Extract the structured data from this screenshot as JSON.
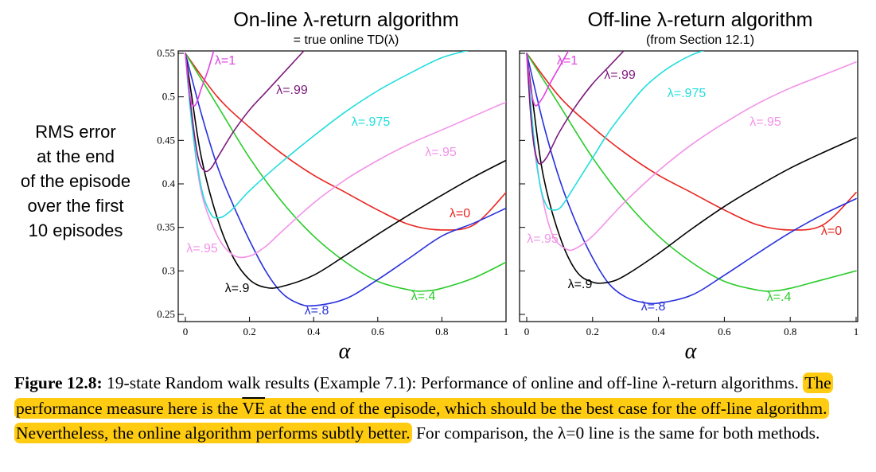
{
  "y_axis_label_lines": [
    "RMS error",
    "at the end",
    "of the episode",
    "over the first",
    "10 episodes"
  ],
  "caption": {
    "label": "Figure 12.8:",
    "text_before_highlight": " 19-state Random walk results (Example 7.1): Performance of online and off-line λ-return algorithms. ",
    "highlight_part1": "The performance measure here is the ",
    "highlight_ve": "VE",
    "highlight_part2": " at the end of the episode, which should be the best case for the off-line algorithm. Nevertheless, the online algorithm performs subtly better.",
    "text_after_highlight": " For comparison, the λ=0 line is the same for both methods.",
    "highlight_color": "#ffcc11"
  },
  "chart_data": [
    {
      "type": "line",
      "title": "On-line λ-return algorithm",
      "subtitle": "= true online TD(λ)",
      "xlabel": "α",
      "ylabel": "RMS error at the end of the episode over the first 10 episodes",
      "xlim": [
        0,
        1
      ],
      "ylim": [
        0.25,
        0.55
      ],
      "x_ticks": [
        "0",
        "0.2",
        "0.4",
        "0.6",
        "0.8",
        "1"
      ],
      "y_ticks": [
        "0.25",
        "0.3",
        "0.35",
        "0.4",
        "0.45",
        "0.5",
        "0.55"
      ],
      "grid": false,
      "series": [
        {
          "name": "λ=0",
          "color": "#e8251f",
          "x": [
            0,
            0.1,
            0.2,
            0.3,
            0.4,
            0.5,
            0.6,
            0.7,
            0.8,
            0.9,
            1.0
          ],
          "y": [
            0.55,
            0.5,
            0.465,
            0.435,
            0.41,
            0.39,
            0.37,
            0.353,
            0.347,
            0.353,
            0.39
          ]
        },
        {
          "name": "λ=.4",
          "color": "#29cc29",
          "x": [
            0,
            0.05,
            0.1,
            0.2,
            0.3,
            0.4,
            0.5,
            0.6,
            0.7,
            0.75,
            0.8,
            0.9,
            1.0
          ],
          "y": [
            0.55,
            0.52,
            0.49,
            0.43,
            0.38,
            0.34,
            0.31,
            0.288,
            0.278,
            0.277,
            0.28,
            0.292,
            0.31
          ]
        },
        {
          "name": "λ=.8",
          "color": "#2830dd",
          "x": [
            0,
            0.05,
            0.1,
            0.15,
            0.2,
            0.25,
            0.3,
            0.35,
            0.4,
            0.5,
            0.6,
            0.7,
            0.8,
            0.9,
            1.0
          ],
          "y": [
            0.55,
            0.48,
            0.42,
            0.375,
            0.335,
            0.3,
            0.275,
            0.263,
            0.26,
            0.268,
            0.29,
            0.315,
            0.34,
            0.355,
            0.372
          ]
        },
        {
          "name": "λ=.9",
          "color": "#000000",
          "x": [
            0,
            0.02,
            0.05,
            0.1,
            0.15,
            0.2,
            0.25,
            0.3,
            0.4,
            0.5,
            0.6,
            0.7,
            0.8,
            0.9,
            1.0
          ],
          "y": [
            0.55,
            0.5,
            0.43,
            0.36,
            0.315,
            0.29,
            0.281,
            0.282,
            0.295,
            0.318,
            0.342,
            0.365,
            0.387,
            0.408,
            0.427
          ]
        },
        {
          "name": "λ=.95",
          "color": "#f292e8",
          "x": [
            0,
            0.02,
            0.05,
            0.1,
            0.15,
            0.2,
            0.25,
            0.3,
            0.4,
            0.5,
            0.6,
            0.7,
            0.8,
            0.9,
            1.0
          ],
          "y": [
            0.55,
            0.47,
            0.39,
            0.34,
            0.318,
            0.317,
            0.328,
            0.345,
            0.378,
            0.405,
            0.427,
            0.446,
            0.462,
            0.478,
            0.494
          ]
        },
        {
          "name": "λ=.975",
          "color": "#22dddd",
          "x": [
            0,
            0.02,
            0.05,
            0.08,
            0.1,
            0.12,
            0.15,
            0.2,
            0.3,
            0.4,
            0.5,
            0.6,
            0.7,
            0.8,
            0.9
          ],
          "y": [
            0.55,
            0.47,
            0.395,
            0.365,
            0.361,
            0.363,
            0.372,
            0.392,
            0.425,
            0.455,
            0.483,
            0.507,
            0.527,
            0.545,
            0.555
          ]
        },
        {
          "name": "λ=.99",
          "color": "#7d1a7d",
          "x": [
            0,
            0.02,
            0.04,
            0.06,
            0.08,
            0.1,
            0.15,
            0.2,
            0.25,
            0.3,
            0.35,
            0.4
          ],
          "y": [
            0.55,
            0.48,
            0.43,
            0.415,
            0.418,
            0.43,
            0.46,
            0.485,
            0.505,
            0.525,
            0.545,
            0.565
          ]
        },
        {
          "name": "λ=1",
          "color": "#e040e0",
          "x": [
            0,
            0.015,
            0.03,
            0.05,
            0.07,
            0.09
          ],
          "y": [
            0.55,
            0.5,
            0.49,
            0.51,
            0.53,
            0.555
          ]
        }
      ],
      "annotations": [
        "λ=0",
        "λ=.4",
        "λ=.8",
        "λ=.9",
        "λ=.95",
        "λ=.95",
        "λ=.975",
        "λ=.99",
        "λ=1"
      ]
    },
    {
      "type": "line",
      "title": "Off-line λ-return algorithm",
      "subtitle": "(from Section 12.1)",
      "xlabel": "α",
      "xlim": [
        0,
        1
      ],
      "ylim": [
        0.25,
        0.55
      ],
      "x_ticks": [
        "0",
        "0.2",
        "0.4",
        "0.6",
        "0.8",
        "1"
      ],
      "grid": false,
      "series": [
        {
          "name": "λ=0",
          "color": "#e8251f",
          "x": [
            0,
            0.1,
            0.2,
            0.3,
            0.4,
            0.5,
            0.6,
            0.7,
            0.8,
            0.9,
            1.0
          ],
          "y": [
            0.55,
            0.5,
            0.465,
            0.435,
            0.41,
            0.39,
            0.37,
            0.353,
            0.347,
            0.353,
            0.39
          ]
        },
        {
          "name": "λ=.4",
          "color": "#29cc29",
          "x": [
            0,
            0.05,
            0.1,
            0.2,
            0.3,
            0.4,
            0.5,
            0.6,
            0.7,
            0.75,
            0.8,
            0.9,
            1.0
          ],
          "y": [
            0.55,
            0.52,
            0.49,
            0.43,
            0.38,
            0.34,
            0.31,
            0.288,
            0.278,
            0.277,
            0.28,
            0.29,
            0.3
          ]
        },
        {
          "name": "λ=.8",
          "color": "#2830dd",
          "x": [
            0,
            0.05,
            0.1,
            0.15,
            0.2,
            0.25,
            0.3,
            0.35,
            0.4,
            0.5,
            0.6,
            0.7,
            0.8,
            0.9,
            1.0
          ],
          "y": [
            0.55,
            0.47,
            0.405,
            0.355,
            0.315,
            0.285,
            0.27,
            0.264,
            0.263,
            0.272,
            0.295,
            0.32,
            0.344,
            0.365,
            0.383
          ]
        },
        {
          "name": "λ=.9",
          "color": "#000000",
          "x": [
            0,
            0.02,
            0.05,
            0.1,
            0.15,
            0.2,
            0.25,
            0.3,
            0.4,
            0.5,
            0.6,
            0.7,
            0.8,
            0.9,
            1.0
          ],
          "y": [
            0.55,
            0.49,
            0.41,
            0.34,
            0.3,
            0.287,
            0.287,
            0.295,
            0.32,
            0.348,
            0.374,
            0.397,
            0.418,
            0.436,
            0.453
          ]
        },
        {
          "name": "λ=.95",
          "color": "#f292e8",
          "x": [
            0,
            0.02,
            0.05,
            0.08,
            0.12,
            0.15,
            0.2,
            0.25,
            0.3,
            0.4,
            0.5,
            0.6,
            0.7,
            0.8,
            0.9,
            1.0
          ],
          "y": [
            0.55,
            0.45,
            0.38,
            0.34,
            0.325,
            0.326,
            0.34,
            0.36,
            0.38,
            0.415,
            0.445,
            0.47,
            0.492,
            0.51,
            0.525,
            0.54
          ]
        },
        {
          "name": "λ=.975",
          "color": "#22dddd",
          "x": [
            0,
            0.02,
            0.04,
            0.06,
            0.08,
            0.1,
            0.12,
            0.15,
            0.2,
            0.25,
            0.3,
            0.35,
            0.4,
            0.45,
            0.5,
            0.55
          ],
          "y": [
            0.55,
            0.46,
            0.4,
            0.375,
            0.37,
            0.372,
            0.382,
            0.4,
            0.43,
            0.46,
            0.485,
            0.508,
            0.525,
            0.538,
            0.548,
            0.555
          ]
        },
        {
          "name": "λ=.99",
          "color": "#7d1a7d",
          "x": [
            0,
            0.01,
            0.02,
            0.03,
            0.04,
            0.06,
            0.08,
            0.1,
            0.15,
            0.2,
            0.25,
            0.3
          ],
          "y": [
            0.55,
            0.49,
            0.45,
            0.43,
            0.423,
            0.43,
            0.445,
            0.46,
            0.49,
            0.515,
            0.535,
            0.555
          ]
        },
        {
          "name": "λ=1",
          "color": "#e040e0",
          "x": [
            0,
            0.01,
            0.02,
            0.03,
            0.05,
            0.07,
            0.1,
            0.13
          ],
          "y": [
            0.55,
            0.515,
            0.495,
            0.49,
            0.5,
            0.515,
            0.535,
            0.555
          ]
        }
      ],
      "annotations": [
        "λ=0",
        "λ=.4",
        "λ=.8",
        "λ=.9",
        "λ=.95",
        "λ=.95",
        "λ=.975",
        "λ=.99",
        "λ=1"
      ]
    }
  ]
}
